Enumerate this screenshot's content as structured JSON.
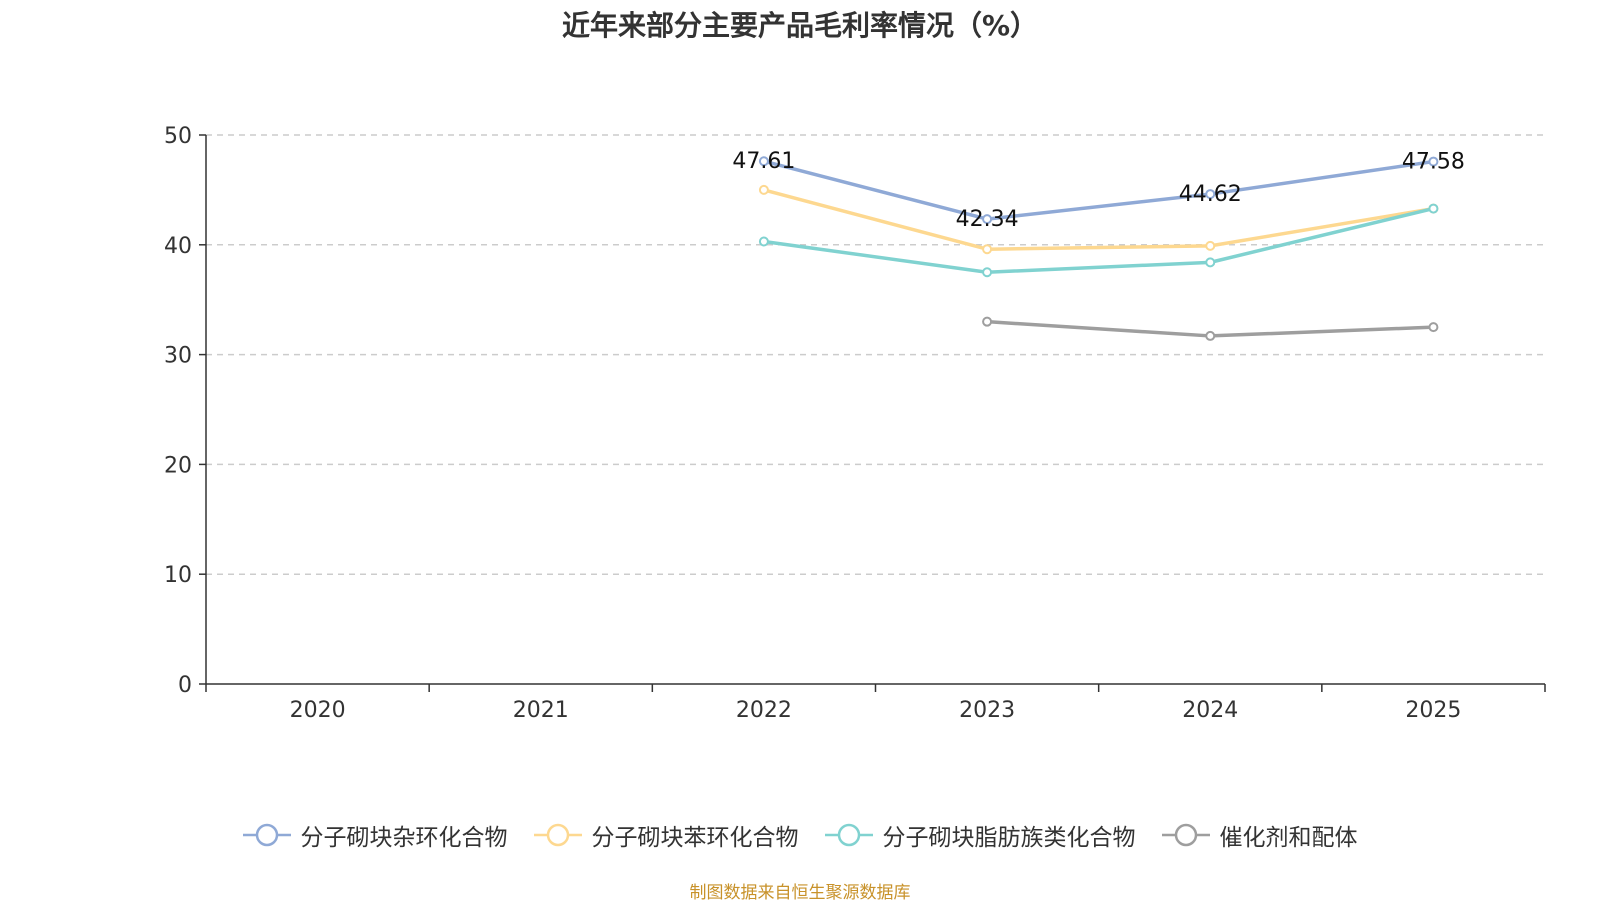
{
  "chart_data": {
    "type": "line",
    "title": "近年来部分主要产品毛利率情况（%）",
    "categories": [
      "2020",
      "2021",
      "2022",
      "2023",
      "2024",
      "2025"
    ],
    "ylim": [
      0,
      50
    ],
    "yticks": [
      0,
      10,
      20,
      30,
      40,
      50
    ],
    "grid": true,
    "legend_position": "bottom",
    "series": [
      {
        "name": "分子砌块杂环化合物",
        "color": "#8fa9d6",
        "values": [
          null,
          null,
          47.61,
          42.34,
          44.62,
          47.58
        ],
        "labels": [
          null,
          null,
          "47.61",
          "42.34",
          "44.62",
          "47.58"
        ]
      },
      {
        "name": "分子砌块苯环化合物",
        "color": "#fdd890",
        "values": [
          null,
          null,
          45.0,
          39.6,
          39.9,
          43.3
        ],
        "labels": [
          null,
          null,
          null,
          null,
          null,
          null
        ]
      },
      {
        "name": "分子砌块脂肪族类化合物",
        "color": "#80d2d0",
        "values": [
          null,
          null,
          40.3,
          37.5,
          38.4,
          43.3
        ],
        "labels": [
          null,
          null,
          null,
          null,
          null,
          null
        ]
      },
      {
        "name": "催化剂和配体",
        "color": "#9e9e9e",
        "values": [
          null,
          null,
          null,
          33.0,
          31.7,
          32.5
        ],
        "labels": [
          null,
          null,
          null,
          null,
          null,
          null
        ]
      }
    ]
  },
  "source": "制图数据来自恒生聚源数据库"
}
